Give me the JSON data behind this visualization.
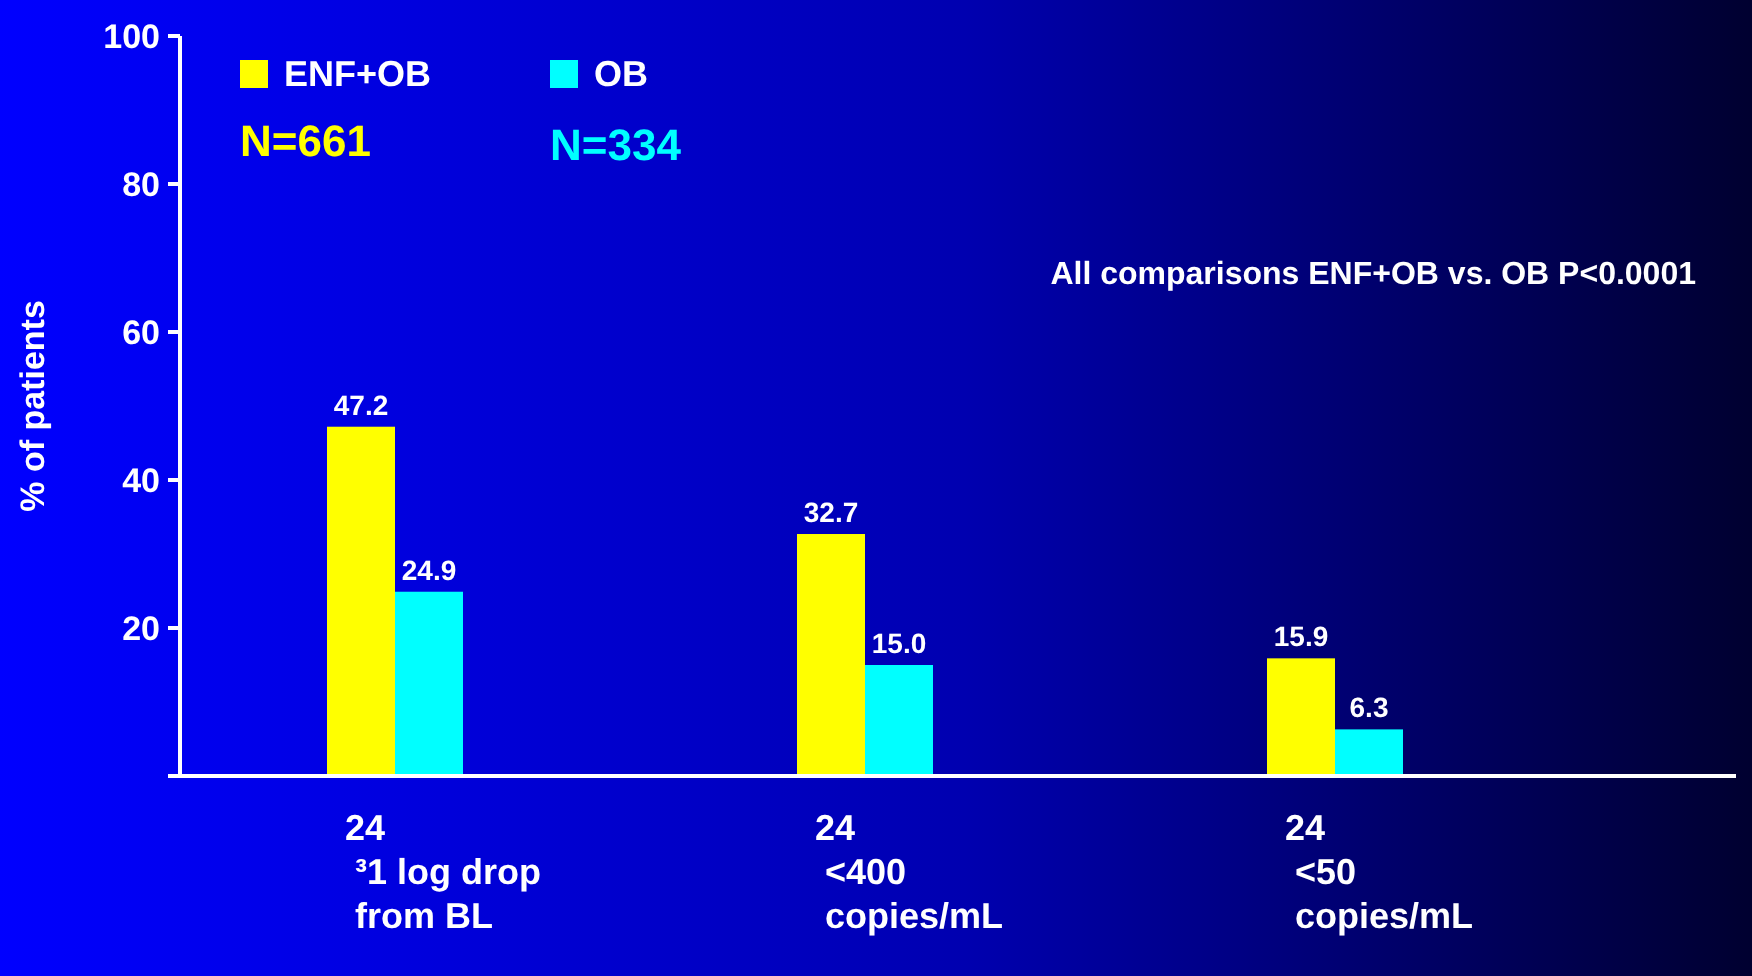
{
  "chart_data": {
    "type": "bar",
    "ylabel": "% of patients",
    "categories": [
      "24\n³1 log drop\nfrom BL",
      "24\n<400\ncopies/mL",
      "24\n<50\ncopies/mL"
    ],
    "series": [
      {
        "name": "ENF+OB",
        "color": "#ffff00",
        "values": [
          47.2,
          32.7,
          15.9
        ]
      },
      {
        "name": "OB",
        "color": "#00ffff",
        "values": [
          24.9,
          15.0,
          6.3
        ]
      }
    ],
    "value_labels": [
      [
        "47.2",
        "32.7",
        "15.9"
      ],
      [
        "24.9",
        "15.0",
        "6.3"
      ]
    ],
    "ylim": [
      0,
      100
    ],
    "yticks": [
      {
        "value": 0,
        "label": null
      },
      20,
      40,
      60,
      80,
      100
    ],
    "legend": "top left",
    "grid": false,
    "annotations": [
      "N=661",
      "N=334",
      "All comparisons ENF+OB vs. OB P<0.0001"
    ]
  }
}
